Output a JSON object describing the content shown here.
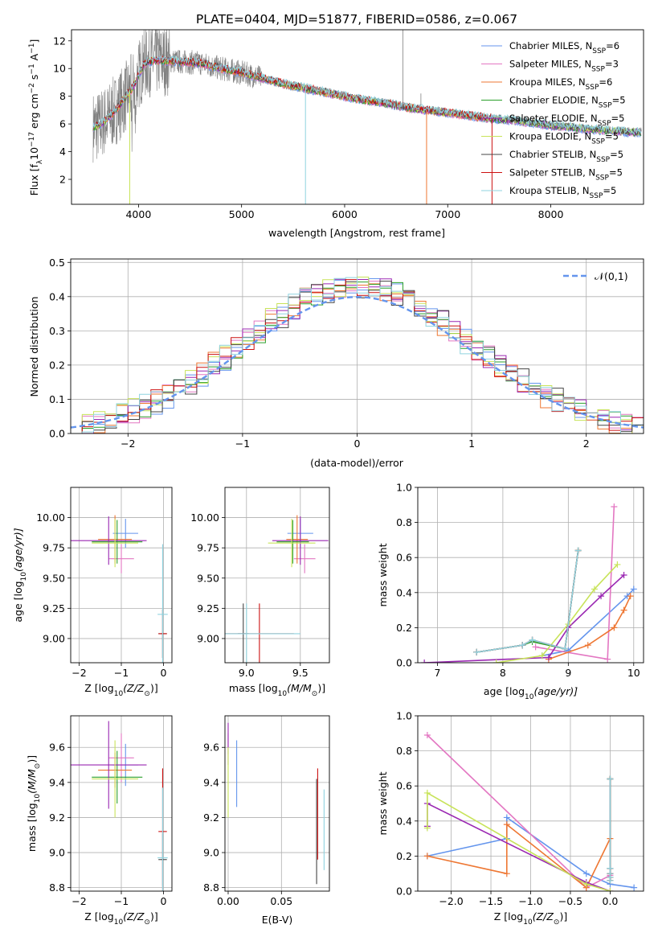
{
  "figure": {
    "title": "PLATE=0404, MJD=51877, FIBERID=0586, z=0.067"
  },
  "colors": {
    "series": [
      "#6495ed",
      "#e377c2",
      "#ee7733",
      "#2ca02c",
      "#9a27b2",
      "#c8e35a",
      "#444444",
      "#cc1111",
      "#8fd3df"
    ],
    "data_spectrum": "#808080",
    "normal_curve": "#6495ed",
    "grid": "#b0b0b0"
  },
  "chart_data": [
    {
      "id": "spectrum",
      "type": "line",
      "xlabel": "wavelength [Angstrom, rest frame]",
      "ylabel": "Flux [f",
      "ylabel_sub": "λ",
      "ylabel_mid": "10",
      "ylabel_sup1": "−17",
      "ylabel_rest": " erg cm",
      "ylabel_sup2": "−2",
      "ylabel_rest2": " s",
      "ylabel_sup3": "−1",
      "ylabel_rest3": " A",
      "ylabel_sup4": "−1",
      "ylabel_end": "]",
      "xlim": [
        3350,
        8900
      ],
      "ylim": [
        0.2,
        12.8
      ],
      "xticks": [
        4000,
        5000,
        6000,
        7000,
        8000
      ],
      "yticks": [
        2,
        4,
        6,
        8,
        10,
        12
      ],
      "grid": false,
      "legend_position": "top-right",
      "legend": [
        {
          "pre": "Chabrier MILES, N",
          "sub": "SSP",
          "post": "=6"
        },
        {
          "pre": "Salpeter MILES, N",
          "sub": "SSP",
          "post": "=3"
        },
        {
          "pre": "Kroupa MILES, N",
          "sub": "SSP",
          "post": "=6"
        },
        {
          "pre": "Chabrier ELODIE, N",
          "sub": "SSP",
          "post": "=5"
        },
        {
          "pre": "Salpeter ELODIE, N",
          "sub": "SSP",
          "post": "=5"
        },
        {
          "pre": "Kroupa ELODIE, N",
          "sub": "SSP",
          "post": "=5"
        },
        {
          "pre": "Chabrier STELIB, N",
          "sub": "SSP",
          "post": "=5"
        },
        {
          "pre": "Salpeter STELIB, N",
          "sub": "SSP",
          "post": "=5"
        },
        {
          "pre": "Kroupa STELIB, N",
          "sub": "SSP",
          "post": "=5"
        }
      ],
      "model_continuum": [
        [
          3600,
          5.8
        ],
        [
          3700,
          6.4
        ],
        [
          3800,
          7.2
        ],
        [
          3950,
          8.7
        ],
        [
          4000,
          9.5
        ],
        [
          4050,
          10.3
        ],
        [
          4100,
          10.5
        ],
        [
          4200,
          10.6
        ],
        [
          4400,
          10.5
        ],
        [
          4600,
          10.4
        ],
        [
          4800,
          10.0
        ],
        [
          5000,
          9.7
        ],
        [
          5200,
          9.3
        ],
        [
          5400,
          8.9
        ],
        [
          5600,
          8.6
        ],
        [
          5800,
          8.3
        ],
        [
          6000,
          8.0
        ],
        [
          6200,
          7.7
        ],
        [
          6400,
          7.5
        ],
        [
          6600,
          7.2
        ],
        [
          6800,
          7.0
        ],
        [
          7000,
          6.8
        ],
        [
          7200,
          6.6
        ],
        [
          7400,
          6.4
        ],
        [
          7600,
          6.3
        ],
        [
          8000,
          5.9
        ],
        [
          8400,
          5.6
        ],
        [
          8800,
          5.4
        ]
      ],
      "data_range": [
        3560,
        8880
      ],
      "data_spikes": [
        {
          "x": 6565,
          "y": 12.8
        },
        {
          "x": 6740,
          "y": 8.2
        }
      ]
    },
    {
      "id": "residual-hist",
      "type": "line",
      "xlabel": "(data-model)/error",
      "ylabel": "Normed distribution",
      "xlim": [
        -2.5,
        2.5
      ],
      "ylim": [
        0,
        0.51
      ],
      "xticks": [
        -2,
        -1,
        0,
        1,
        2
      ],
      "yticks": [
        0.0,
        0.1,
        0.2,
        0.3,
        0.4,
        0.5
      ],
      "grid": true,
      "legend_position": "top-right",
      "legend": [
        "𝒩(0,1)"
      ],
      "bin_width": 0.1
    },
    {
      "id": "age-vs-Z",
      "type": "scatter",
      "xlabel": "Z [log",
      "xlabel_sub": "10",
      "xlabel_rest": "(Z/Z",
      "xlabel_sun": "⊙",
      "xlabel_end": ")]",
      "ylabel": "age  [log",
      "ylabel_sub": "10",
      "ylabel_rest": "(age/yr)]",
      "xlim": [
        -2.2,
        0.2
      ],
      "ylim": [
        8.8,
        10.25
      ],
      "xticks": [
        -2,
        -1,
        0
      ],
      "yticks": [
        9.0,
        9.25,
        9.5,
        9.75,
        10.0
      ],
      "grid": true,
      "points": [
        {
          "s": 0,
          "x": -0.9,
          "xerr": 0.3,
          "y": 9.87,
          "yerr": 0.12
        },
        {
          "s": 1,
          "x": -1.0,
          "xerr": 0.3,
          "y": 9.66,
          "yerr": 0.12
        },
        {
          "s": 2,
          "x": -1.15,
          "xerr": 0.4,
          "y": 9.82,
          "yerr": 0.2
        },
        {
          "s": 3,
          "x": -1.1,
          "xerr": 0.6,
          "y": 9.8,
          "yerr": 0.18
        },
        {
          "s": 4,
          "x": -1.3,
          "xerr": 0.9,
          "y": 9.81,
          "yerr": 0.2
        },
        {
          "s": 5,
          "x": -1.15,
          "xerr": 0.55,
          "y": 9.79,
          "yerr": 0.2
        },
        {
          "s": 6,
          "x": -0.02,
          "xerr": 0.1,
          "y": 9.04,
          "yerr": 0.2
        },
        {
          "s": 7,
          "x": -0.02,
          "xerr": 0.1,
          "y": 9.04,
          "yerr": 0.2
        },
        {
          "s": 8,
          "x": -0.02,
          "xerr": 0.12,
          "y": 9.2,
          "yerr": 0.58
        }
      ]
    },
    {
      "id": "age-vs-mass",
      "type": "scatter",
      "xlabel": "mass [log",
      "xlabel_sub": "10",
      "xlabel_rest": "(M/M",
      "xlabel_sun": "⊙",
      "xlabel_end": ")]",
      "xlim": [
        8.8,
        9.77
      ],
      "ylim": [
        8.8,
        10.25
      ],
      "xticks": [
        9.0,
        9.5
      ],
      "yticks": [
        9.0,
        9.25,
        9.5,
        9.75,
        10.0
      ],
      "grid": true,
      "points": [
        {
          "s": 0,
          "x": 9.5,
          "xerr": 0.12,
          "y": 9.87,
          "yerr": 0.12
        },
        {
          "s": 1,
          "x": 9.54,
          "xerr": 0.1,
          "y": 9.66,
          "yerr": 0.12
        },
        {
          "s": 2,
          "x": 9.47,
          "xerr": 0.1,
          "y": 9.82,
          "yerr": 0.2
        },
        {
          "s": 3,
          "x": 9.43,
          "xerr": 0.15,
          "y": 9.8,
          "yerr": 0.18
        },
        {
          "s": 4,
          "x": 9.5,
          "xerr": 0.26,
          "y": 9.81,
          "yerr": 0.2
        },
        {
          "s": 5,
          "x": 9.42,
          "xerr": 0.22,
          "y": 9.79,
          "yerr": 0.2
        },
        {
          "s": 6,
          "x": 8.97,
          "xerr": 0.05,
          "y": 9.04,
          "yerr": 0.25
        },
        {
          "s": 7,
          "x": 9.12,
          "xerr": 0.32,
          "y": 9.04,
          "yerr": 0.25
        },
        {
          "s": 8,
          "x": 9.0,
          "xerr": 0.5,
          "y": 9.04,
          "yerr": 0.25
        }
      ]
    },
    {
      "id": "weight-vs-age",
      "type": "line",
      "xlabel": "age  [log",
      "xlabel_sub": "10",
      "xlabel_rest": "(age/yr)]",
      "ylabel": "mass weight",
      "xlim": [
        6.7,
        10.15
      ],
      "ylim": [
        0,
        1.0
      ],
      "xticks": [
        7,
        8,
        9,
        10
      ],
      "yticks": [
        0.0,
        0.2,
        0.4,
        0.6,
        0.8,
        1.0
      ],
      "grid": true,
      "series": [
        {
          "s": 0,
          "x": [
            8.6,
            9.0,
            9.9,
            10.0
          ],
          "y": [
            0.04,
            0.07,
            0.38,
            0.42
          ]
        },
        {
          "s": 1,
          "x": [
            8.5,
            9.6,
            9.7
          ],
          "y": [
            0.09,
            0.02,
            0.89
          ]
        },
        {
          "s": 2,
          "x": [
            8.7,
            9.3,
            9.7,
            9.85,
            9.95
          ],
          "y": [
            0.02,
            0.1,
            0.2,
            0.3,
            0.38
          ]
        },
        {
          "s": 3,
          "x": [
            7.6,
            8.3,
            8.45,
            8.95,
            9.15
          ],
          "y": [
            0.06,
            0.1,
            0.12,
            0.08,
            0.64
          ]
        },
        {
          "s": 4,
          "x": [
            6.8,
            8.7,
            9.0,
            9.5,
            9.85
          ],
          "y": [
            0.0,
            0.03,
            0.2,
            0.38,
            0.5
          ]
        },
        {
          "s": 5,
          "x": [
            7.9,
            8.6,
            9.0,
            9.4,
            9.75
          ],
          "y": [
            0.0,
            0.04,
            0.22,
            0.42,
            0.56
          ]
        },
        {
          "s": 6,
          "x": [
            7.6,
            8.3,
            8.45,
            8.95,
            9.15
          ],
          "y": [
            0.06,
            0.1,
            0.13,
            0.08,
            0.64
          ]
        },
        {
          "s": 7,
          "x": [
            7.6,
            8.3,
            8.45,
            8.95,
            9.15
          ],
          "y": [
            0.06,
            0.1,
            0.13,
            0.08,
            0.64
          ]
        },
        {
          "s": 8,
          "x": [
            7.6,
            8.3,
            8.45,
            8.95,
            9.15
          ],
          "y": [
            0.06,
            0.1,
            0.13,
            0.08,
            0.64
          ]
        }
      ]
    },
    {
      "id": "mass-vs-Z",
      "type": "scatter",
      "xlabel": "Z [log",
      "xlabel_sub": "10",
      "xlabel_rest": "(Z/Z",
      "xlabel_sun": "⊙",
      "xlabel_end": ")]",
      "ylabel": "mass [log",
      "ylabel_sub": "10",
      "ylabel_rest": "(M/M",
      "ylabel_sun": "⊙",
      "ylabel_end": ")]",
      "xlim": [
        -2.2,
        0.2
      ],
      "ylim": [
        8.78,
        9.78
      ],
      "xticks": [
        -2,
        -1,
        0
      ],
      "yticks": [
        8.8,
        9.0,
        9.2,
        9.4,
        9.6
      ],
      "grid": true,
      "points": [
        {
          "s": 0,
          "x": -0.9,
          "xerr": 0.3,
          "y": 9.5,
          "yerr": 0.12
        },
        {
          "s": 1,
          "x": -1.0,
          "xerr": 0.3,
          "y": 9.54,
          "yerr": 0.14
        },
        {
          "s": 2,
          "x": -1.15,
          "xerr": 0.4,
          "y": 9.47,
          "yerr": 0.1
        },
        {
          "s": 3,
          "x": -1.1,
          "xerr": 0.6,
          "y": 9.43,
          "yerr": 0.15
        },
        {
          "s": 4,
          "x": -1.3,
          "xerr": 0.9,
          "y": 9.5,
          "yerr": 0.25
        },
        {
          "s": 5,
          "x": -1.15,
          "xerr": 0.55,
          "y": 9.42,
          "yerr": 0.22
        },
        {
          "s": 6,
          "x": -0.02,
          "xerr": 0.1,
          "y": 8.96,
          "yerr": 0.15
        },
        {
          "s": 7,
          "x": -0.02,
          "xerr": 0.1,
          "y": 9.12,
          "yerr": 0.36
        },
        {
          "s": 8,
          "x": -0.02,
          "xerr": 0.12,
          "y": 8.97,
          "yerr": 0.4
        }
      ]
    },
    {
      "id": "mass-vs-ebv",
      "type": "scatter",
      "xlabel": "E(B-V)",
      "xlim": [
        -0.003,
        0.095
      ],
      "ylim": [
        8.78,
        9.78
      ],
      "xticks": [
        0.0,
        0.05
      ],
      "yticks": [
        8.8,
        9.0,
        9.2,
        9.4,
        9.6
      ],
      "grid": true,
      "points": [
        {
          "s": 0,
          "x": 0.008,
          "y": 9.45,
          "yerr": 0.19
        },
        {
          "s": 1,
          "x": 0.0,
          "y": 9.62,
          "yerr": 0.06
        },
        {
          "s": 4,
          "x": 0.0,
          "y": 9.62,
          "yerr": 0.12
        },
        {
          "s": 5,
          "x": 0.0,
          "y": 9.4,
          "yerr": 0.2
        },
        {
          "s": 6,
          "x": 0.083,
          "y": 9.12,
          "yerr": 0.3
        },
        {
          "s": 7,
          "x": 0.084,
          "y": 9.22,
          "yerr": 0.26
        },
        {
          "s": 8,
          "x": 0.09,
          "y": 9.13,
          "yerr": 0.23
        }
      ]
    },
    {
      "id": "weight-vs-Z",
      "type": "line",
      "xlabel": "Z [log",
      "xlabel_sub": "10",
      "xlabel_rest": "(Z/Z",
      "xlabel_sun": "⊙",
      "xlabel_end": ")]",
      "ylabel": "mass weight",
      "xlim": [
        -2.42,
        0.42
      ],
      "ylim": [
        0,
        1.0
      ],
      "xticks": [
        -2.0,
        -1.5,
        -1.0,
        -0.5,
        0.0
      ],
      "yticks": [
        0.0,
        0.2,
        0.4,
        0.6,
        0.8,
        1.0
      ],
      "grid": true,
      "series": [
        {
          "s": 0,
          "x": [
            -2.3,
            -1.3,
            -1.3,
            -0.3,
            0.0,
            0.3
          ],
          "y": [
            0.2,
            0.3,
            0.42,
            0.1,
            0.04,
            0.02
          ]
        },
        {
          "s": 1,
          "x": [
            -2.3,
            -0.3,
            0.0
          ],
          "y": [
            0.89,
            0.02,
            0.09
          ]
        },
        {
          "s": 2,
          "x": [
            -2.3,
            -1.3,
            -1.3,
            -0.3,
            0.0
          ],
          "y": [
            0.2,
            0.1,
            0.38,
            0.02,
            0.3
          ]
        },
        {
          "s": 3,
          "x": [
            0.0,
            0.0,
            0.0,
            0.0,
            0.0
          ],
          "y": [
            0.06,
            0.1,
            0.13,
            0.08,
            0.64
          ]
        },
        {
          "s": 4,
          "x": [
            -2.3,
            -2.3,
            -0.3,
            0.0
          ],
          "y": [
            0.37,
            0.5,
            0.05,
            0.0
          ]
        },
        {
          "s": 5,
          "x": [
            -2.3,
            -2.3,
            -0.3,
            0.0
          ],
          "y": [
            0.36,
            0.56,
            0.04,
            0.0
          ]
        },
        {
          "s": 6,
          "x": [
            0.0,
            0.0,
            0.0,
            0.0,
            0.0
          ],
          "y": [
            0.06,
            0.1,
            0.13,
            0.08,
            0.64
          ]
        },
        {
          "s": 7,
          "x": [
            0.0,
            0.0,
            0.0,
            0.0,
            0.0
          ],
          "y": [
            0.06,
            0.1,
            0.13,
            0.08,
            0.64
          ]
        },
        {
          "s": 8,
          "x": [
            0.0,
            0.0,
            0.0,
            0.0,
            0.0
          ],
          "y": [
            0.06,
            0.1,
            0.13,
            0.08,
            0.64
          ]
        }
      ]
    }
  ]
}
